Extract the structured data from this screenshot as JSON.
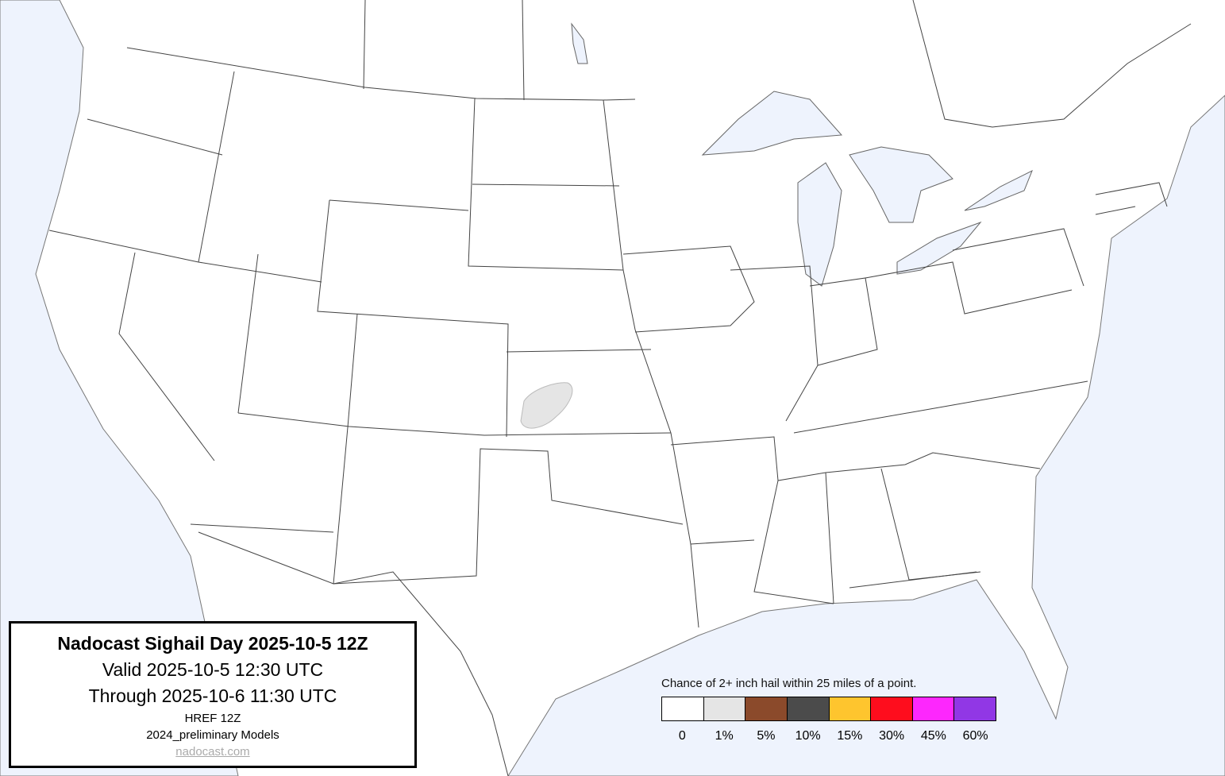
{
  "map": {
    "land_color": "#ffffff",
    "water_color": "#eef3fd",
    "border_color": "#444444",
    "forecast_areas": [
      {
        "category": "1%",
        "color": "#e5e5e5",
        "region": "western Kansas"
      }
    ]
  },
  "title_box": {
    "title": "Nadocast Sighail Day 2025-10-5 12Z",
    "valid": "Valid 2025-10-5 12:30 UTC",
    "through": "Through 2025-10-6 11:30 UTC",
    "model": "HREF 12Z",
    "models_version": "2024_preliminary Models",
    "link": "nadocast.com"
  },
  "legend": {
    "title": "Chance of 2+ inch hail within 25 miles of a point.",
    "items": [
      {
        "label": "0",
        "color": "#ffffff"
      },
      {
        "label": "1%",
        "color": "#e5e5e5"
      },
      {
        "label": "5%",
        "color": "#8b4a2b"
      },
      {
        "label": "10%",
        "color": "#4b4b4b"
      },
      {
        "label": "15%",
        "color": "#fec52e"
      },
      {
        "label": "30%",
        "color": "#fe0d1d"
      },
      {
        "label": "45%",
        "color": "#fd27fd"
      },
      {
        "label": "60%",
        "color": "#9137e5"
      }
    ]
  }
}
